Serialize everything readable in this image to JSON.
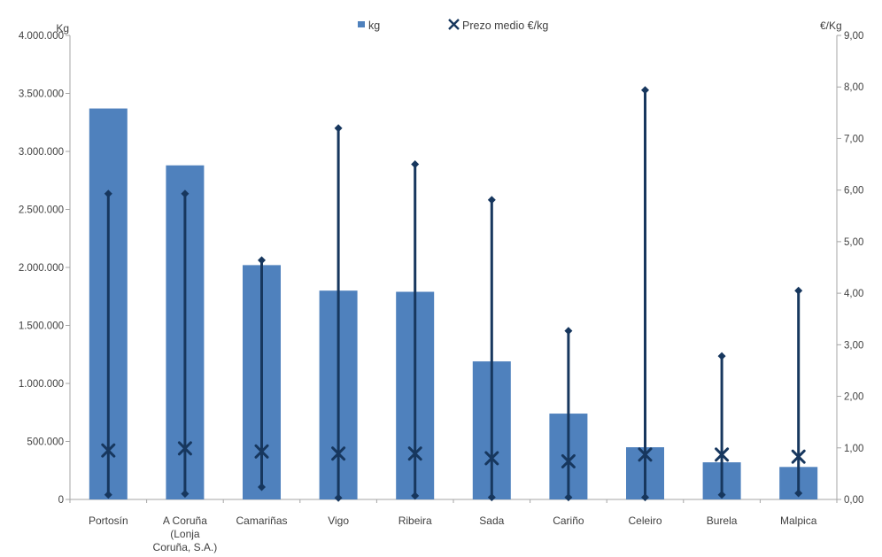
{
  "chart_data": {
    "type": "bar",
    "title": "",
    "categories": [
      "Portosín",
      "A Coruña (Lonja Coruña, S.A.)",
      "Camariñas",
      "Vigo",
      "Ribeira",
      "Sada",
      "Cariño",
      "Celeiro",
      "Burela",
      "Malpica"
    ],
    "category_label_lines": [
      [
        "Portosín"
      ],
      [
        "A Coruña",
        "(Lonja",
        "Coruña, S.A.)"
      ],
      [
        "Camariñas"
      ],
      [
        "Vigo"
      ],
      [
        "Ribeira"
      ],
      [
        "Sada"
      ],
      [
        "Cariño"
      ],
      [
        "Celeiro"
      ],
      [
        "Burela"
      ],
      [
        "Malpica"
      ]
    ],
    "series": [
      {
        "name": "kg",
        "type": "bar",
        "axis": "left",
        "values": [
          3370000,
          2880000,
          2020000,
          1800000,
          1790000,
          1190000,
          740000,
          450000,
          320000,
          280000
        ]
      },
      {
        "name": "Prezo medio €/kg",
        "type": "x_marker",
        "axis": "right",
        "values": [
          0.95,
          0.99,
          0.93,
          0.89,
          0.89,
          0.8,
          0.74,
          0.87,
          0.87,
          0.83
        ]
      },
      {
        "type": "high_low_range",
        "axis": "right",
        "high": [
          5.93,
          5.93,
          4.64,
          7.2,
          6.5,
          5.81,
          3.27,
          7.94,
          2.78,
          4.05
        ],
        "low": [
          0.09,
          0.11,
          0.24,
          0.03,
          0.07,
          0.04,
          0.04,
          0.04,
          0.09,
          0.12
        ]
      }
    ],
    "left_axis": {
      "title": "Kg",
      "min": 0,
      "max": 4000000,
      "step": 500000,
      "tick_labels": [
        "0",
        "500.000",
        "1.000.000",
        "1.500.000",
        "2.000.000",
        "2.500.000",
        "3.000.000",
        "3.500.000",
        "4.000.000"
      ]
    },
    "right_axis": {
      "title": "€/Kg",
      "min": 0,
      "max": 9,
      "step": 1,
      "tick_labels": [
        "0,00",
        "1,00",
        "2,00",
        "3,00",
        "4,00",
        "5,00",
        "6,00",
        "7,00",
        "8,00",
        "9,00"
      ]
    },
    "legend": [
      {
        "label": "kg",
        "marker": "square"
      },
      {
        "label": "Prezo medio €/kg",
        "marker": "x"
      }
    ],
    "colors": {
      "bar": "#4F81BD",
      "line": "#17375E",
      "text": "#404040",
      "axis": "#A6A6A6"
    }
  }
}
